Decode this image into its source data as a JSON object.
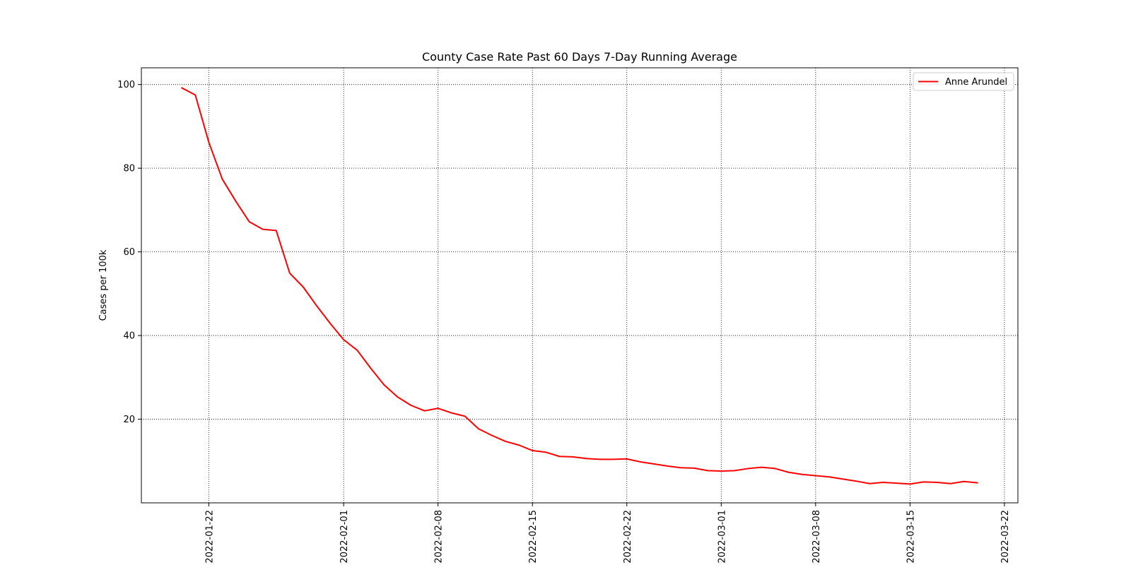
{
  "chart_data": {
    "type": "line",
    "title": "County Case Rate  Past 60 Days 7-Day Running Average",
    "xlabel": "",
    "ylabel": "Cases per 100k",
    "xlim": [
      "2022-01-17",
      "2022-03-23"
    ],
    "ylim": [
      0,
      104
    ],
    "x_ticks": [
      "2022-01-22",
      "2022-02-01",
      "2022-02-08",
      "2022-02-15",
      "2022-02-22",
      "2022-03-01",
      "2022-03-08",
      "2022-03-15",
      "2022-03-22"
    ],
    "y_ticks": [
      20,
      40,
      60,
      80,
      100
    ],
    "grid": true,
    "legend": {
      "position": "top-right"
    },
    "series": [
      {
        "name": "Anne Arundel",
        "color": "#ff0000",
        "x": [
          "2022-01-20",
          "2022-01-21",
          "2022-01-22",
          "2022-01-23",
          "2022-01-24",
          "2022-01-25",
          "2022-01-26",
          "2022-01-27",
          "2022-01-28",
          "2022-01-29",
          "2022-01-30",
          "2022-01-31",
          "2022-02-01",
          "2022-02-02",
          "2022-02-03",
          "2022-02-04",
          "2022-02-05",
          "2022-02-06",
          "2022-02-07",
          "2022-02-08",
          "2022-02-09",
          "2022-02-10",
          "2022-02-11",
          "2022-02-12",
          "2022-02-13",
          "2022-02-14",
          "2022-02-15",
          "2022-02-16",
          "2022-02-17",
          "2022-02-18",
          "2022-02-19",
          "2022-02-20",
          "2022-02-21",
          "2022-02-22",
          "2022-02-23",
          "2022-02-24",
          "2022-02-25",
          "2022-02-26",
          "2022-02-27",
          "2022-02-28",
          "2022-03-01",
          "2022-03-02",
          "2022-03-03",
          "2022-03-04",
          "2022-03-05",
          "2022-03-06",
          "2022-03-07",
          "2022-03-08",
          "2022-03-09",
          "2022-03-10",
          "2022-03-11",
          "2022-03-12",
          "2022-03-13",
          "2022-03-14",
          "2022-03-15",
          "2022-03-16",
          "2022-03-17",
          "2022-03-18",
          "2022-03-19",
          "2022-03-20"
        ],
        "y": [
          99.2,
          97.5,
          86.2,
          77.4,
          72.1,
          67.2,
          65.4,
          65.1,
          54.9,
          51.6,
          47.1,
          42.9,
          39.0,
          36.5,
          32.2,
          28.2,
          25.3,
          23.3,
          22.0,
          22.6,
          21.5,
          20.7,
          17.7,
          16.1,
          14.7,
          13.8,
          12.5,
          12.1,
          11.1,
          11.0,
          10.6,
          10.4,
          10.4,
          10.5,
          9.8,
          9.3,
          8.8,
          8.4,
          8.3,
          7.7,
          7.6,
          7.7,
          8.2,
          8.5,
          8.2,
          7.3,
          6.8,
          6.5,
          6.2,
          5.7,
          5.2,
          4.6,
          4.9,
          4.7,
          4.5,
          5.0,
          4.9,
          4.6,
          5.1,
          4.8
        ]
      }
    ]
  }
}
